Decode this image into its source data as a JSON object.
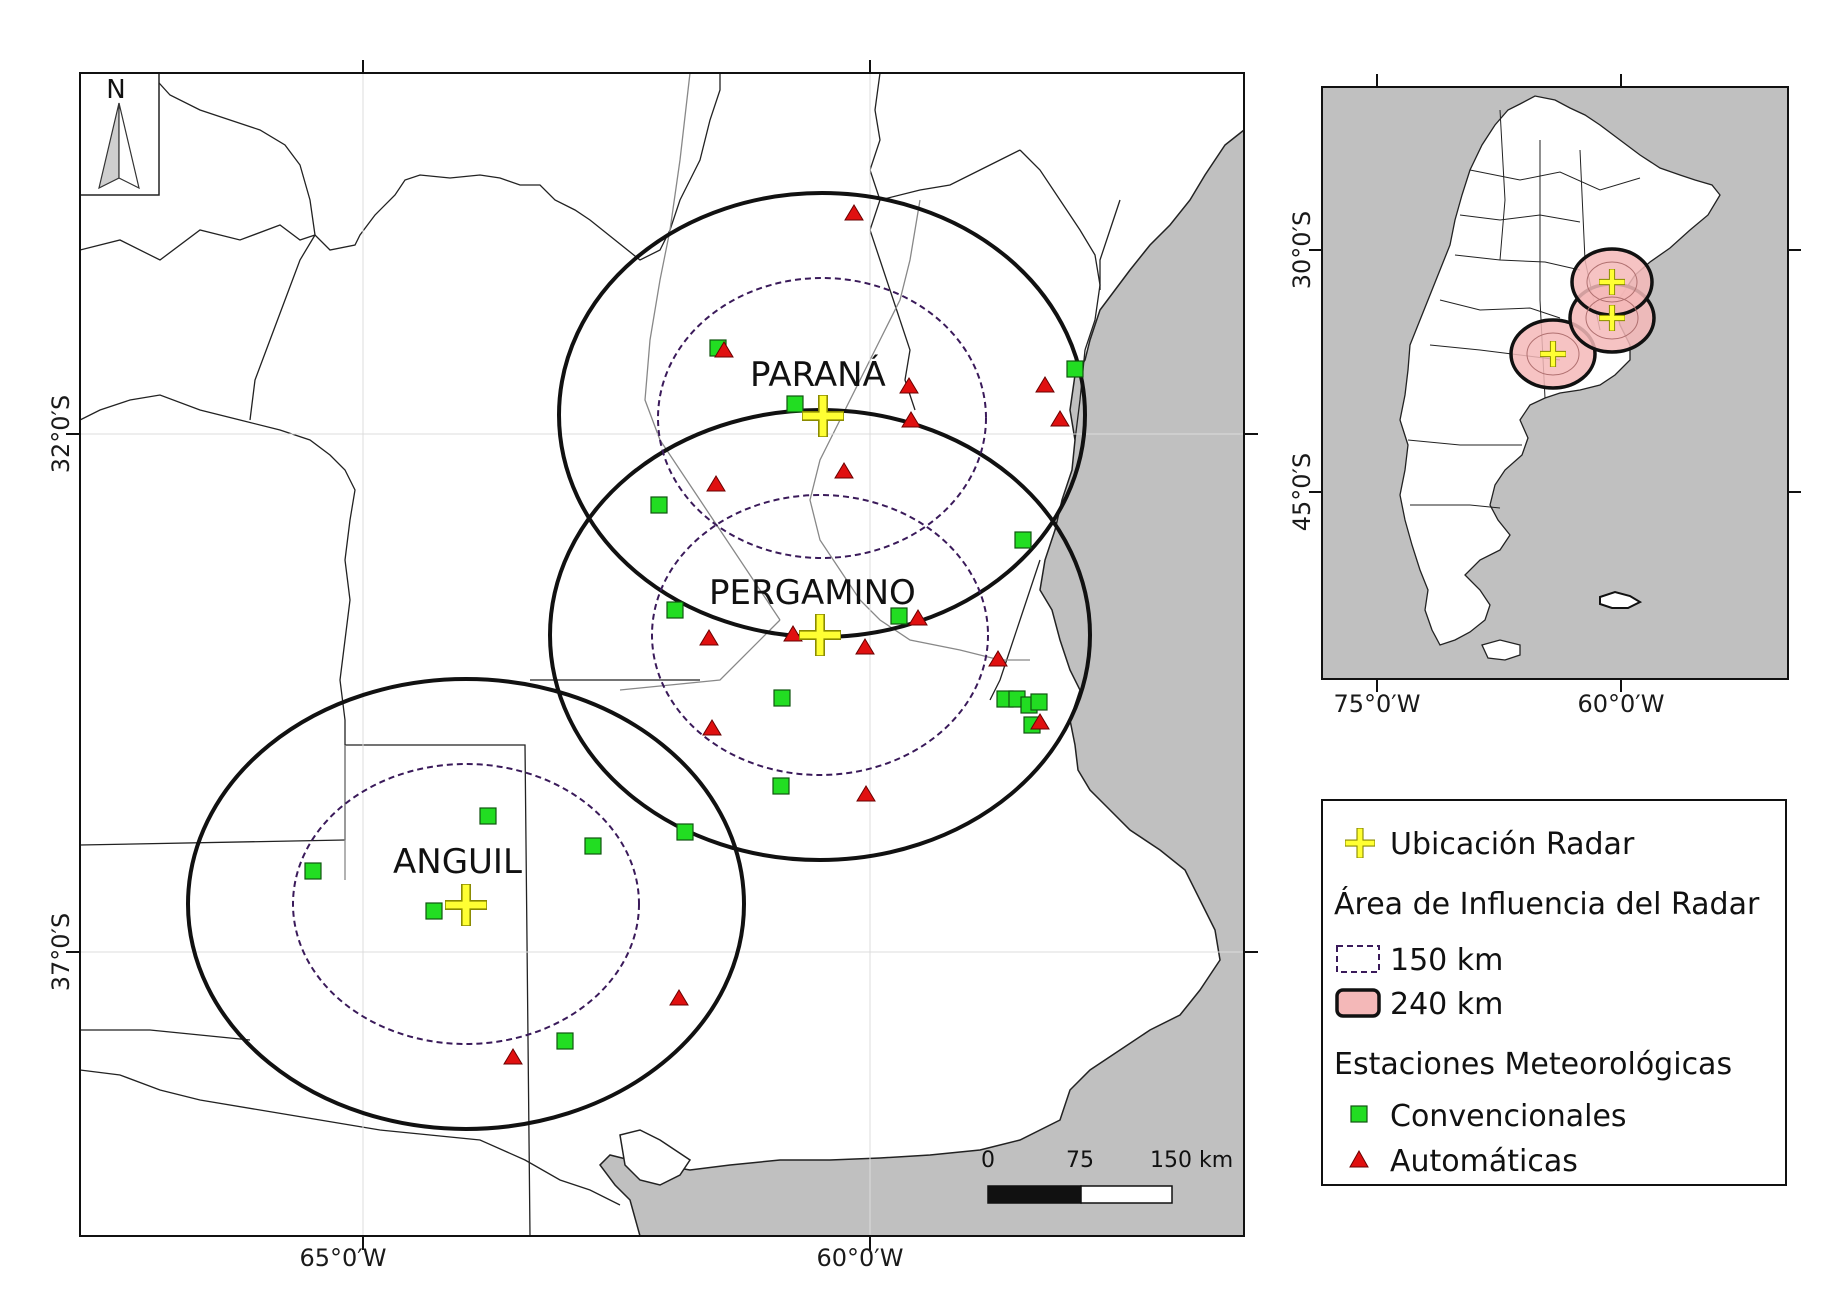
{
  "map": {
    "north_label": "N",
    "lon_labels": [
      "65°0′W",
      "60°0′W"
    ],
    "lat_labels": [
      "32°0′S",
      "37°0′S"
    ],
    "radars": [
      {
        "name": "PARANÁ"
      },
      {
        "name": "PERGAMINO"
      },
      {
        "name": "ANGUIL"
      }
    ],
    "scale": {
      "ticks": [
        "0",
        "75",
        "150 km"
      ]
    },
    "colors": {
      "ocean": "#c0c0c0",
      "land": "#ffffff",
      "radar": "#ffff33",
      "conventional": "#22dd22",
      "automatic": "#e01010",
      "ring150": "#3a1a5a",
      "ring240": "#111111",
      "inset_fill": "#f4b8b8"
    }
  },
  "inset": {
    "lat_labels": [
      "30°0′S",
      "45°0′S"
    ],
    "lon_labels": [
      "75°0′W",
      "60°0′W"
    ]
  },
  "legend": {
    "radar_location": "Ubicación Radar",
    "influence_title": "Área de Influencia del Radar",
    "ring_150": "150 km",
    "ring_240": "240 km",
    "stations_title": "Estaciones Meteorológicas",
    "conventional": "Convencionales",
    "automatic": "Automáticas"
  }
}
